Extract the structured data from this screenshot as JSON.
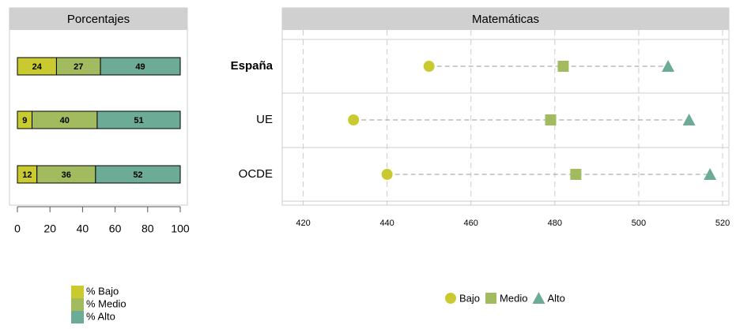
{
  "chart_data": [
    {
      "type": "stacked_bar",
      "title": "Porcentajes",
      "series": [
        {
          "name": "% Bajo",
          "color": "#c9c930",
          "values": [
            24,
            9,
            12
          ]
        },
        {
          "name": "% Medio",
          "color": "#a2bb5e",
          "values": [
            27,
            40,
            36
          ]
        },
        {
          "name": "% Alto",
          "color": "#6cab96",
          "values": [
            49,
            51,
            52
          ]
        }
      ],
      "xlim": [
        0,
        100
      ],
      "xticks": [
        0,
        20,
        40,
        60,
        80,
        100
      ],
      "legend": "bottom-left"
    },
    {
      "type": "dot",
      "title": "Matemáticas",
      "categories": [
        "España",
        "UE",
        "OCDE"
      ],
      "series": [
        {
          "name": "Bajo",
          "color": "#c9c930",
          "marker": "circle",
          "values": [
            450,
            432,
            440
          ]
        },
        {
          "name": "Medio",
          "color": "#a2bb5e",
          "marker": "square",
          "values": [
            482,
            479,
            485
          ]
        },
        {
          "name": "Alto",
          "color": "#6cab96",
          "marker": "triangle",
          "values": [
            507,
            512,
            517
          ]
        }
      ],
      "xlim": [
        415,
        521.5
      ],
      "xticks": [
        420,
        440,
        460,
        480,
        500,
        520
      ],
      "grid": true,
      "legend": "bottom"
    }
  ]
}
